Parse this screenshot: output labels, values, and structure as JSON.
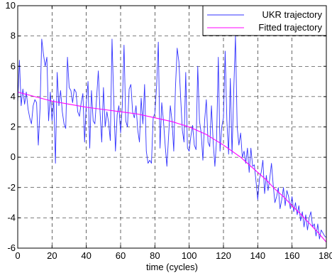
{
  "chart_data": {
    "type": "line",
    "title": "",
    "xlabel": "time (cycles)",
    "ylabel": "",
    "xlim": [
      0,
      180
    ],
    "ylim": [
      -6,
      10
    ],
    "xticks": [
      0,
      20,
      40,
      60,
      80,
      100,
      120,
      140,
      160,
      180
    ],
    "yticks": [
      -6,
      -4,
      -2,
      0,
      2,
      4,
      6,
      8,
      10
    ],
    "grid": true,
    "legend_position": "top-right",
    "series": [
      {
        "name": "UKR trajectory",
        "color": "#3333ff",
        "points": [
          [
            0,
            3.6
          ],
          [
            1,
            6.4
          ],
          [
            2,
            3.4
          ],
          [
            3,
            4.5
          ],
          [
            4,
            3.5
          ],
          [
            5,
            4.3
          ],
          [
            6,
            3.2
          ],
          [
            7,
            2.6
          ],
          [
            8,
            2.2
          ],
          [
            9,
            3.4
          ],
          [
            10,
            3.8
          ],
          [
            11,
            3.6
          ],
          [
            12,
            0.8
          ],
          [
            13,
            3.2
          ],
          [
            14,
            7.8
          ],
          [
            15,
            6.8
          ],
          [
            16,
            6.0
          ],
          [
            17,
            6.6
          ],
          [
            18,
            2.4
          ],
          [
            19,
            4.3
          ],
          [
            20,
            2.4
          ],
          [
            21,
            3.8
          ],
          [
            22,
            -0.4
          ],
          [
            23,
            5.6
          ],
          [
            24,
            3.4
          ],
          [
            25,
            4.4
          ],
          [
            26,
            3.0
          ],
          [
            27,
            2.2
          ],
          [
            28,
            1.9
          ],
          [
            29,
            6.6
          ],
          [
            30,
            4.6
          ],
          [
            31,
            4.4
          ],
          [
            32,
            3.6
          ],
          [
            33,
            4.5
          ],
          [
            34,
            4.3
          ],
          [
            35,
            3.0
          ],
          [
            36,
            2.7
          ],
          [
            37,
            3.6
          ],
          [
            38,
            4.2
          ],
          [
            39,
            1.0
          ],
          [
            40,
            3.6
          ],
          [
            41,
            5.0
          ],
          [
            42,
            0.6
          ],
          [
            43,
            4.4
          ],
          [
            44,
            2.4
          ],
          [
            45,
            2.2
          ],
          [
            46,
            3.9
          ],
          [
            47,
            5.7
          ],
          [
            48,
            3.0
          ],
          [
            49,
            1.0
          ],
          [
            50,
            4.6
          ],
          [
            51,
            2.0
          ],
          [
            52,
            3.0
          ],
          [
            53,
            2.3
          ],
          [
            54,
            1.1
          ],
          [
            55,
            7.8
          ],
          [
            56,
            3.8
          ],
          [
            57,
            0.4
          ],
          [
            58,
            2.8
          ],
          [
            59,
            3.4
          ],
          [
            60,
            1.6
          ],
          [
            61,
            3.4
          ],
          [
            62,
            7.4
          ],
          [
            63,
            2.4
          ],
          [
            64,
            2.0
          ],
          [
            65,
            4.5
          ],
          [
            66,
            4.8
          ],
          [
            67,
            3.0
          ],
          [
            68,
            2.6
          ],
          [
            69,
            3.4
          ],
          [
            70,
            1.8
          ],
          [
            71,
            1.0
          ],
          [
            72,
            3.9
          ],
          [
            73,
            2.2
          ],
          [
            74,
            4.8
          ],
          [
            75,
            0.4
          ],
          [
            76,
            -0.4
          ],
          [
            77,
            -0.2
          ],
          [
            78,
            -0.4
          ],
          [
            79,
            2.6
          ],
          [
            80,
            2.9
          ],
          [
            81,
            4.7
          ],
          [
            82,
            7.6
          ],
          [
            83,
            0.6
          ],
          [
            84,
            3.6
          ],
          [
            85,
            2.4
          ],
          [
            86,
            0.8
          ],
          [
            87,
            -0.6
          ],
          [
            88,
            1.4
          ],
          [
            89,
            3.4
          ],
          [
            90,
            2.4
          ],
          [
            91,
            0.4
          ],
          [
            92,
            4.6
          ],
          [
            93,
            7.2
          ],
          [
            94,
            6.3
          ],
          [
            95,
            4.0
          ],
          [
            96,
            1.8
          ],
          [
            97,
            1.0
          ],
          [
            98,
            5.6
          ],
          [
            99,
            0.6
          ],
          [
            100,
            0.4
          ],
          [
            101,
            1.4
          ],
          [
            102,
            2.1
          ],
          [
            103,
            0.8
          ],
          [
            104,
            0.5
          ],
          [
            105,
            6.0
          ],
          [
            106,
            2.4
          ],
          [
            107,
            1.6
          ],
          [
            108,
            -0.2
          ],
          [
            109,
            2.4
          ],
          [
            110,
            3.8
          ],
          [
            111,
            1.0
          ],
          [
            112,
            0.7
          ],
          [
            113,
            3.4
          ],
          [
            114,
            1.0
          ],
          [
            115,
            -0.6
          ],
          [
            116,
            1.2
          ],
          [
            117,
            6.6
          ],
          [
            118,
            0.4
          ],
          [
            119,
            2.0
          ],
          [
            120,
            2.6
          ],
          [
            121,
            7.0
          ],
          [
            122,
            2.4
          ],
          [
            123,
            0.2
          ],
          [
            124,
            5.2
          ],
          [
            125,
            0.2
          ],
          [
            126,
            4.4
          ],
          [
            127,
            8.0
          ],
          [
            128,
            2.0
          ],
          [
            129,
            0.8
          ],
          [
            130,
            1.6
          ],
          [
            131,
            0.0
          ],
          [
            132,
            0.4
          ],
          [
            133,
            -0.4
          ],
          [
            134,
            0.6
          ],
          [
            135,
            -1.0
          ],
          [
            136,
            0.6
          ],
          [
            137,
            -0.6
          ],
          [
            138,
            -0.5
          ],
          [
            139,
            -1.6
          ],
          [
            140,
            -2.8
          ],
          [
            141,
            -1.4
          ],
          [
            142,
            -1.0
          ],
          [
            143,
            -0.2
          ],
          [
            144,
            -2.4
          ],
          [
            145,
            -1.2
          ],
          [
            146,
            -2.2
          ],
          [
            147,
            -1.4
          ],
          [
            148,
            -0.4
          ],
          [
            149,
            -1.8
          ],
          [
            150,
            -3.0
          ],
          [
            151,
            -2.6
          ],
          [
            152,
            -2.0
          ],
          [
            153,
            -3.4
          ],
          [
            154,
            -2.8
          ],
          [
            155,
            -2.0
          ],
          [
            156,
            -3.2
          ],
          [
            157,
            -2.2
          ],
          [
            158,
            -2.6
          ],
          [
            159,
            -3.4
          ],
          [
            160,
            -2.6
          ],
          [
            161,
            -3.6
          ],
          [
            162,
            -3.0
          ],
          [
            163,
            -3.8
          ],
          [
            164,
            -3.2
          ],
          [
            165,
            -4.2
          ],
          [
            166,
            -3.6
          ],
          [
            167,
            -4.6
          ],
          [
            168,
            -3.8
          ],
          [
            169,
            -4.8
          ],
          [
            170,
            -4.0
          ],
          [
            171,
            -3.6
          ],
          [
            172,
            -4.6
          ],
          [
            173,
            -4.4
          ],
          [
            174,
            -5.2
          ],
          [
            175,
            -4.4
          ],
          [
            176,
            -5.4
          ],
          [
            177,
            -4.8
          ],
          [
            178,
            -5.0
          ],
          [
            179,
            -5.2
          ],
          [
            180,
            -5.3
          ]
        ]
      },
      {
        "name": "Fitted trajectory",
        "color": "#ff00ff",
        "points": [
          [
            0,
            4.3
          ],
          [
            10,
            4.0
          ],
          [
            20,
            3.7
          ],
          [
            30,
            3.5
          ],
          [
            40,
            3.3
          ],
          [
            50,
            3.15
          ],
          [
            60,
            3.0
          ],
          [
            70,
            2.85
          ],
          [
            80,
            2.6
          ],
          [
            90,
            2.35
          ],
          [
            100,
            2.0
          ],
          [
            110,
            1.5
          ],
          [
            120,
            0.8
          ],
          [
            125,
            0.4
          ],
          [
            130,
            0.0
          ],
          [
            135,
            -0.5
          ],
          [
            140,
            -1.0
          ],
          [
            145,
            -1.5
          ],
          [
            150,
            -2.1
          ],
          [
            155,
            -2.6
          ],
          [
            160,
            -3.2
          ],
          [
            165,
            -3.75
          ],
          [
            170,
            -4.35
          ],
          [
            175,
            -4.95
          ],
          [
            180,
            -5.6
          ]
        ]
      }
    ]
  }
}
